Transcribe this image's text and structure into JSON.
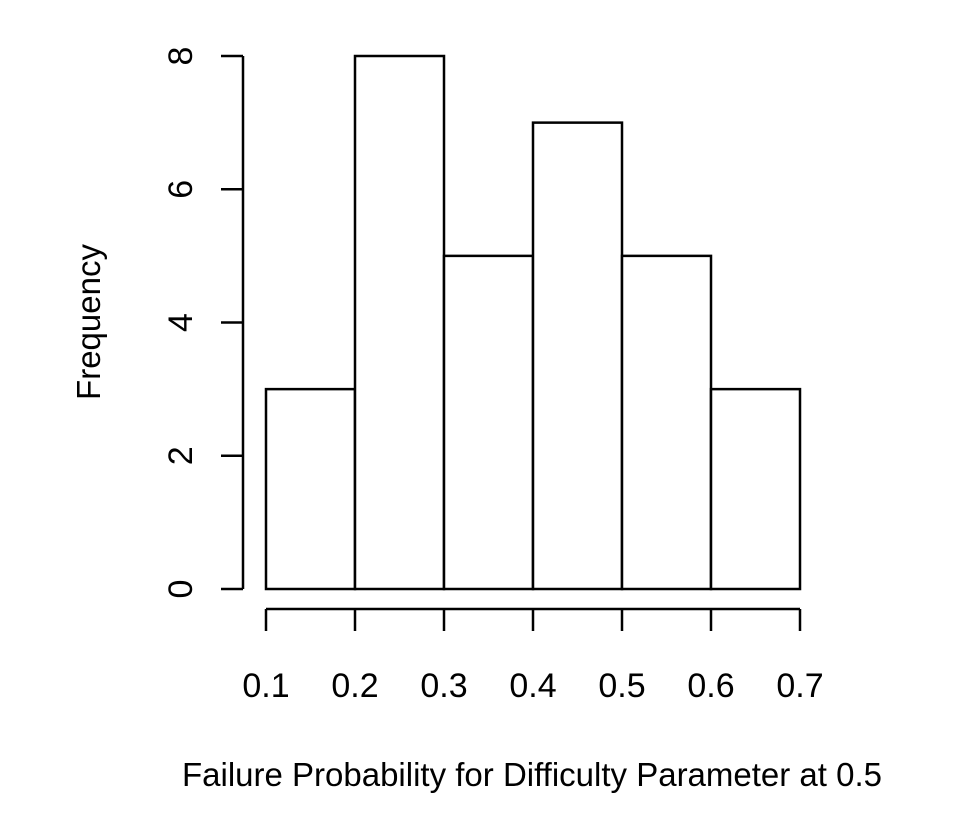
{
  "chart_data": {
    "type": "histogram",
    "title": "",
    "xlabel": "Failure Probability for Difficulty Parameter at 0.5",
    "ylabel": "Frequency",
    "bins": [
      {
        "from": 0.1,
        "to": 0.2,
        "count": 3
      },
      {
        "from": 0.2,
        "to": 0.3,
        "count": 8
      },
      {
        "from": 0.3,
        "to": 0.4,
        "count": 5
      },
      {
        "from": 0.4,
        "to": 0.5,
        "count": 7
      },
      {
        "from": 0.5,
        "to": 0.6,
        "count": 5
      },
      {
        "from": 0.6,
        "to": 0.7,
        "count": 3
      }
    ],
    "x_ticks": [
      {
        "value": 0.1,
        "label": "0.1"
      },
      {
        "value": 0.2,
        "label": "0.2"
      },
      {
        "value": 0.3,
        "label": "0.3"
      },
      {
        "value": 0.4,
        "label": "0.4"
      },
      {
        "value": 0.5,
        "label": "0.5"
      },
      {
        "value": 0.6,
        "label": "0.6"
      },
      {
        "value": 0.7,
        "label": "0.7"
      }
    ],
    "y_ticks": [
      {
        "value": 0,
        "label": "0"
      },
      {
        "value": 2,
        "label": "2"
      },
      {
        "value": 4,
        "label": "4"
      },
      {
        "value": 6,
        "label": "6"
      },
      {
        "value": 8,
        "label": "8"
      }
    ],
    "xlim": [
      0.1,
      0.7
    ],
    "ylim": [
      0,
      8
    ],
    "grid": false,
    "legend": "none"
  }
}
